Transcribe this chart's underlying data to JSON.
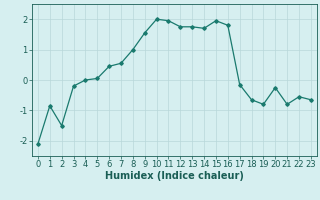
{
  "x": [
    0,
    1,
    2,
    3,
    4,
    5,
    6,
    7,
    8,
    9,
    10,
    11,
    12,
    13,
    14,
    15,
    16,
    17,
    18,
    19,
    20,
    21,
    22,
    23
  ],
  "y": [
    -2.1,
    -0.85,
    -1.5,
    -0.2,
    0.0,
    0.05,
    0.45,
    0.55,
    1.0,
    1.55,
    2.0,
    1.95,
    1.75,
    1.75,
    1.7,
    1.95,
    1.8,
    -0.15,
    -0.65,
    -0.8,
    -0.25,
    -0.8,
    -0.55,
    -0.65
  ],
  "line_color": "#1a7a6e",
  "marker": "D",
  "markersize": 1.8,
  "linewidth": 0.9,
  "xlabel": "Humidex (Indice chaleur)",
  "xlim": [
    -0.5,
    23.5
  ],
  "ylim": [
    -2.5,
    2.5
  ],
  "yticks": [
    -2,
    -1,
    0,
    1,
    2
  ],
  "xticks": [
    0,
    1,
    2,
    3,
    4,
    5,
    6,
    7,
    8,
    9,
    10,
    11,
    12,
    13,
    14,
    15,
    16,
    17,
    18,
    19,
    20,
    21,
    22,
    23
  ],
  "bg_color": "#d6eff0",
  "grid_color": "#b8d8da",
  "tick_color": "#1a5e55",
  "label_fontsize": 6,
  "xlabel_fontsize": 7
}
